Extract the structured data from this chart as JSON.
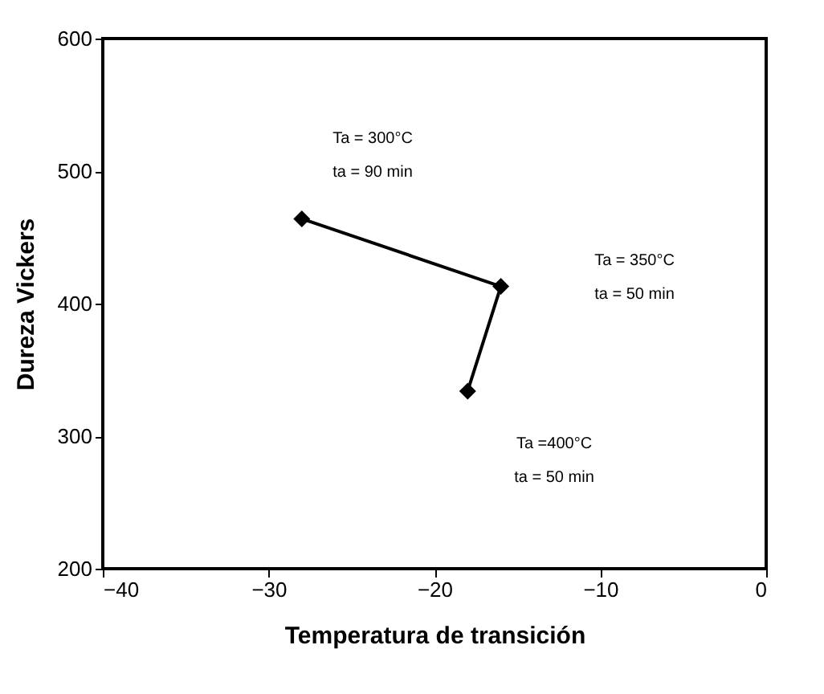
{
  "chart_data": {
    "type": "line",
    "xlabel": "Temperatura de transición",
    "ylabel": "Dureza Vickers",
    "x": [
      -28,
      -16,
      -18
    ],
    "series": [
      {
        "color": "#000000",
        "values": [
          464,
          413,
          334
        ]
      }
    ],
    "xlim": [
      -40,
      0
    ],
    "xticks": [
      -40,
      -30,
      -20,
      -10,
      0
    ],
    "ylim": [
      200,
      600
    ],
    "yticks": [
      200,
      300,
      400,
      500,
      600
    ],
    "grid": false,
    "marker": "diamond",
    "line_style": "solid",
    "annotations": [
      "Ta = 300°C\n ta = 90 min",
      "Ta = 350°C\n ta = 50 min",
      "Ta =400°C\n ta = 50 min"
    ]
  }
}
